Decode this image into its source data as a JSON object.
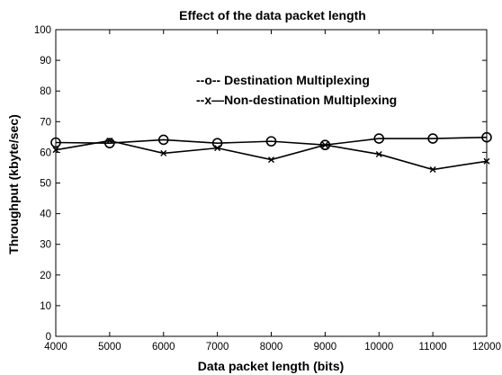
{
  "chart_data": {
    "type": "line",
    "title": "Effect of the data packet length",
    "xlabel": "Data packet length (bits)",
    "ylabel": "Throughput (kbyte/sec)",
    "x": [
      4000,
      5000,
      6000,
      7000,
      8000,
      9000,
      10000,
      11000,
      12000
    ],
    "xlim": [
      4000,
      12000
    ],
    "ylim": [
      0,
      100
    ],
    "xticks": [
      "4000",
      "5000",
      "6000",
      "7000",
      "8000",
      "9000",
      "10000",
      "11000",
      "12000"
    ],
    "yticks": [
      "0",
      "10",
      "20",
      "30",
      "40",
      "50",
      "60",
      "70",
      "80",
      "90",
      "100"
    ],
    "grid": false,
    "legend_position": "top-right",
    "series": [
      {
        "name": "Destination Multiplexing",
        "legend_label": "--o-- Destination Multiplexing",
        "marker": "circle",
        "color": "#000000",
        "values": [
          63.2,
          63.0,
          64.1,
          63.0,
          63.6,
          62.4,
          64.5,
          64.5,
          64.9
        ]
      },
      {
        "name": "Non-destination Multiplexing",
        "legend_label": "--x—Non-destination Multiplexing",
        "marker": "x",
        "color": "#000000",
        "values": [
          60.8,
          63.8,
          59.7,
          61.4,
          57.6,
          62.4,
          59.4,
          54.4,
          57.1
        ]
      }
    ]
  }
}
